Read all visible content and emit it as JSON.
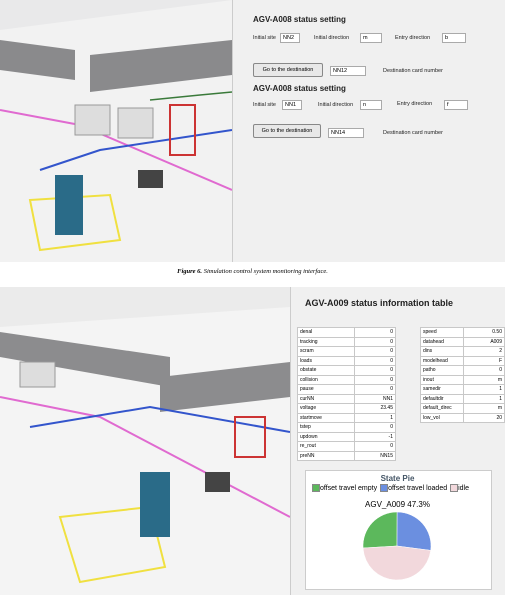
{
  "top": {
    "title1": "AGV-A008 status setting",
    "row1": {
      "initial_site_label": "Initial site",
      "initial_site": "NN2",
      "initial_direction_label": "Initial direction",
      "initial_direction": "m",
      "entry_direction_label": "Entry direction",
      "entry_direction": "b"
    },
    "button1": "Go to the destination",
    "destination1": "NN12",
    "destination_label1": "Destination card number",
    "title2": "AGV-A008 status setting",
    "row2": {
      "initial_site_label": "Initial site",
      "initial_site": "NN1",
      "initial_direction_label": "Initial direction",
      "initial_direction": "n",
      "entry_direction_label": "Entry direction",
      "entry_direction": "f"
    },
    "button2": "Go to the destination",
    "destination2": "NN14",
    "destination_label2": "Destination card number"
  },
  "caption": {
    "label": "Figure 6.",
    "text": "Simulation control system monitoring interface."
  },
  "bottom": {
    "title": "AGV-A009 status information table",
    "left_table": [
      [
        "denal",
        "0"
      ],
      [
        "tracking",
        "0"
      ],
      [
        "scram",
        "0"
      ],
      [
        "loads",
        "0"
      ],
      [
        "obstate",
        "0"
      ],
      [
        "collision",
        "0"
      ],
      [
        "pause",
        "0"
      ],
      [
        "curNN",
        "NN1"
      ],
      [
        "voltage",
        "23.45"
      ],
      [
        "startmove",
        "1"
      ],
      [
        "tstep",
        "0"
      ],
      [
        "updown",
        "-1"
      ],
      [
        "re_rout",
        "0"
      ],
      [
        "preNN",
        "NN15"
      ]
    ],
    "right_table": [
      [
        "speed",
        "0.50"
      ],
      [
        "datahead",
        "A009"
      ],
      [
        "dins",
        "2"
      ],
      [
        "modelhead",
        "F"
      ],
      [
        "patho",
        "0"
      ],
      [
        "inout",
        "m"
      ],
      [
        "samedir",
        "1"
      ],
      [
        "defaultdir",
        "1"
      ],
      [
        "default_direc",
        "m"
      ],
      [
        "low_vol",
        "20"
      ]
    ],
    "pie": {
      "title": "State Pie",
      "subtitle": "AGV_A009 47.3%",
      "slices": [
        {
          "name": "offset travel empty",
          "color": "#5cb85c",
          "value": 26
        },
        {
          "name": "offset travel loaded",
          "color": "#6b8fe0",
          "value": 27
        },
        {
          "name": "idle",
          "color": "#f2d8dc",
          "value": 47
        }
      ]
    }
  }
}
